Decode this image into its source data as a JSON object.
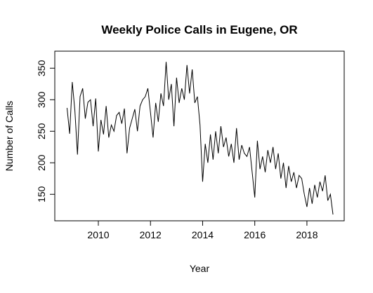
{
  "chart_data": {
    "type": "line",
    "title": "Weekly Police Calls in Eugene, OR",
    "xlabel": "Year",
    "ylabel": "Number of Calls",
    "x": [
      2008.8,
      2008.9,
      2009.0,
      2009.1,
      2009.2,
      2009.3,
      2009.4,
      2009.5,
      2009.6,
      2009.7,
      2009.8,
      2009.9,
      2010.0,
      2010.1,
      2010.2,
      2010.3,
      2010.4,
      2010.5,
      2010.6,
      2010.7,
      2010.8,
      2010.9,
      2011.0,
      2011.1,
      2011.2,
      2011.3,
      2011.4,
      2011.5,
      2011.6,
      2011.7,
      2011.8,
      2011.9,
      2012.0,
      2012.1,
      2012.2,
      2012.3,
      2012.4,
      2012.5,
      2012.6,
      2012.7,
      2012.8,
      2012.9,
      2013.0,
      2013.1,
      2013.2,
      2013.3,
      2013.4,
      2013.5,
      2013.6,
      2013.7,
      2013.8,
      2013.9,
      2014.0,
      2014.1,
      2014.2,
      2014.3,
      2014.4,
      2014.5,
      2014.6,
      2014.7,
      2014.8,
      2014.9,
      2015.0,
      2015.1,
      2015.2,
      2015.3,
      2015.4,
      2015.5,
      2015.6,
      2015.7,
      2015.8,
      2015.9,
      2016.0,
      2016.1,
      2016.2,
      2016.3,
      2016.4,
      2016.5,
      2016.6,
      2016.7,
      2016.8,
      2016.9,
      2017.0,
      2017.1,
      2017.2,
      2017.3,
      2017.4,
      2017.5,
      2017.6,
      2017.7,
      2017.8,
      2017.9,
      2018.0,
      2018.1,
      2018.2,
      2018.3,
      2018.4,
      2018.5,
      2018.6,
      2018.7,
      2018.8,
      2018.9,
      2019.0
    ],
    "series": [
      {
        "name": "Calls",
        "color": "#000000",
        "values": [
          287,
          246,
          328,
          283,
          213,
          305,
          318,
          270,
          296,
          300,
          258,
          302,
          218,
          268,
          245,
          290,
          240,
          260,
          250,
          275,
          280,
          262,
          286,
          215,
          255,
          270,
          285,
          250,
          290,
          300,
          305,
          318,
          280,
          240,
          295,
          265,
          310,
          290,
          360,
          300,
          325,
          258,
          335,
          295,
          318,
          300,
          355,
          310,
          348,
          295,
          305,
          260,
          170,
          230,
          200,
          245,
          205,
          250,
          215,
          258,
          225,
          240,
          210,
          230,
          200,
          255,
          205,
          228,
          215,
          210,
          225,
          185,
          145,
          235,
          190,
          210,
          185,
          220,
          200,
          225,
          190,
          215,
          175,
          200,
          160,
          195,
          170,
          185,
          160,
          180,
          175,
          150,
          130,
          160,
          135,
          165,
          145,
          170,
          155,
          180,
          140,
          150,
          118
        ]
      }
    ],
    "xlim": [
      2008.33,
      2019.43
    ],
    "ylim": [
      108,
      377
    ],
    "xticks": [
      2010,
      2012,
      2014,
      2016,
      2018
    ],
    "yticks": [
      150,
      200,
      250,
      300,
      350
    ]
  }
}
